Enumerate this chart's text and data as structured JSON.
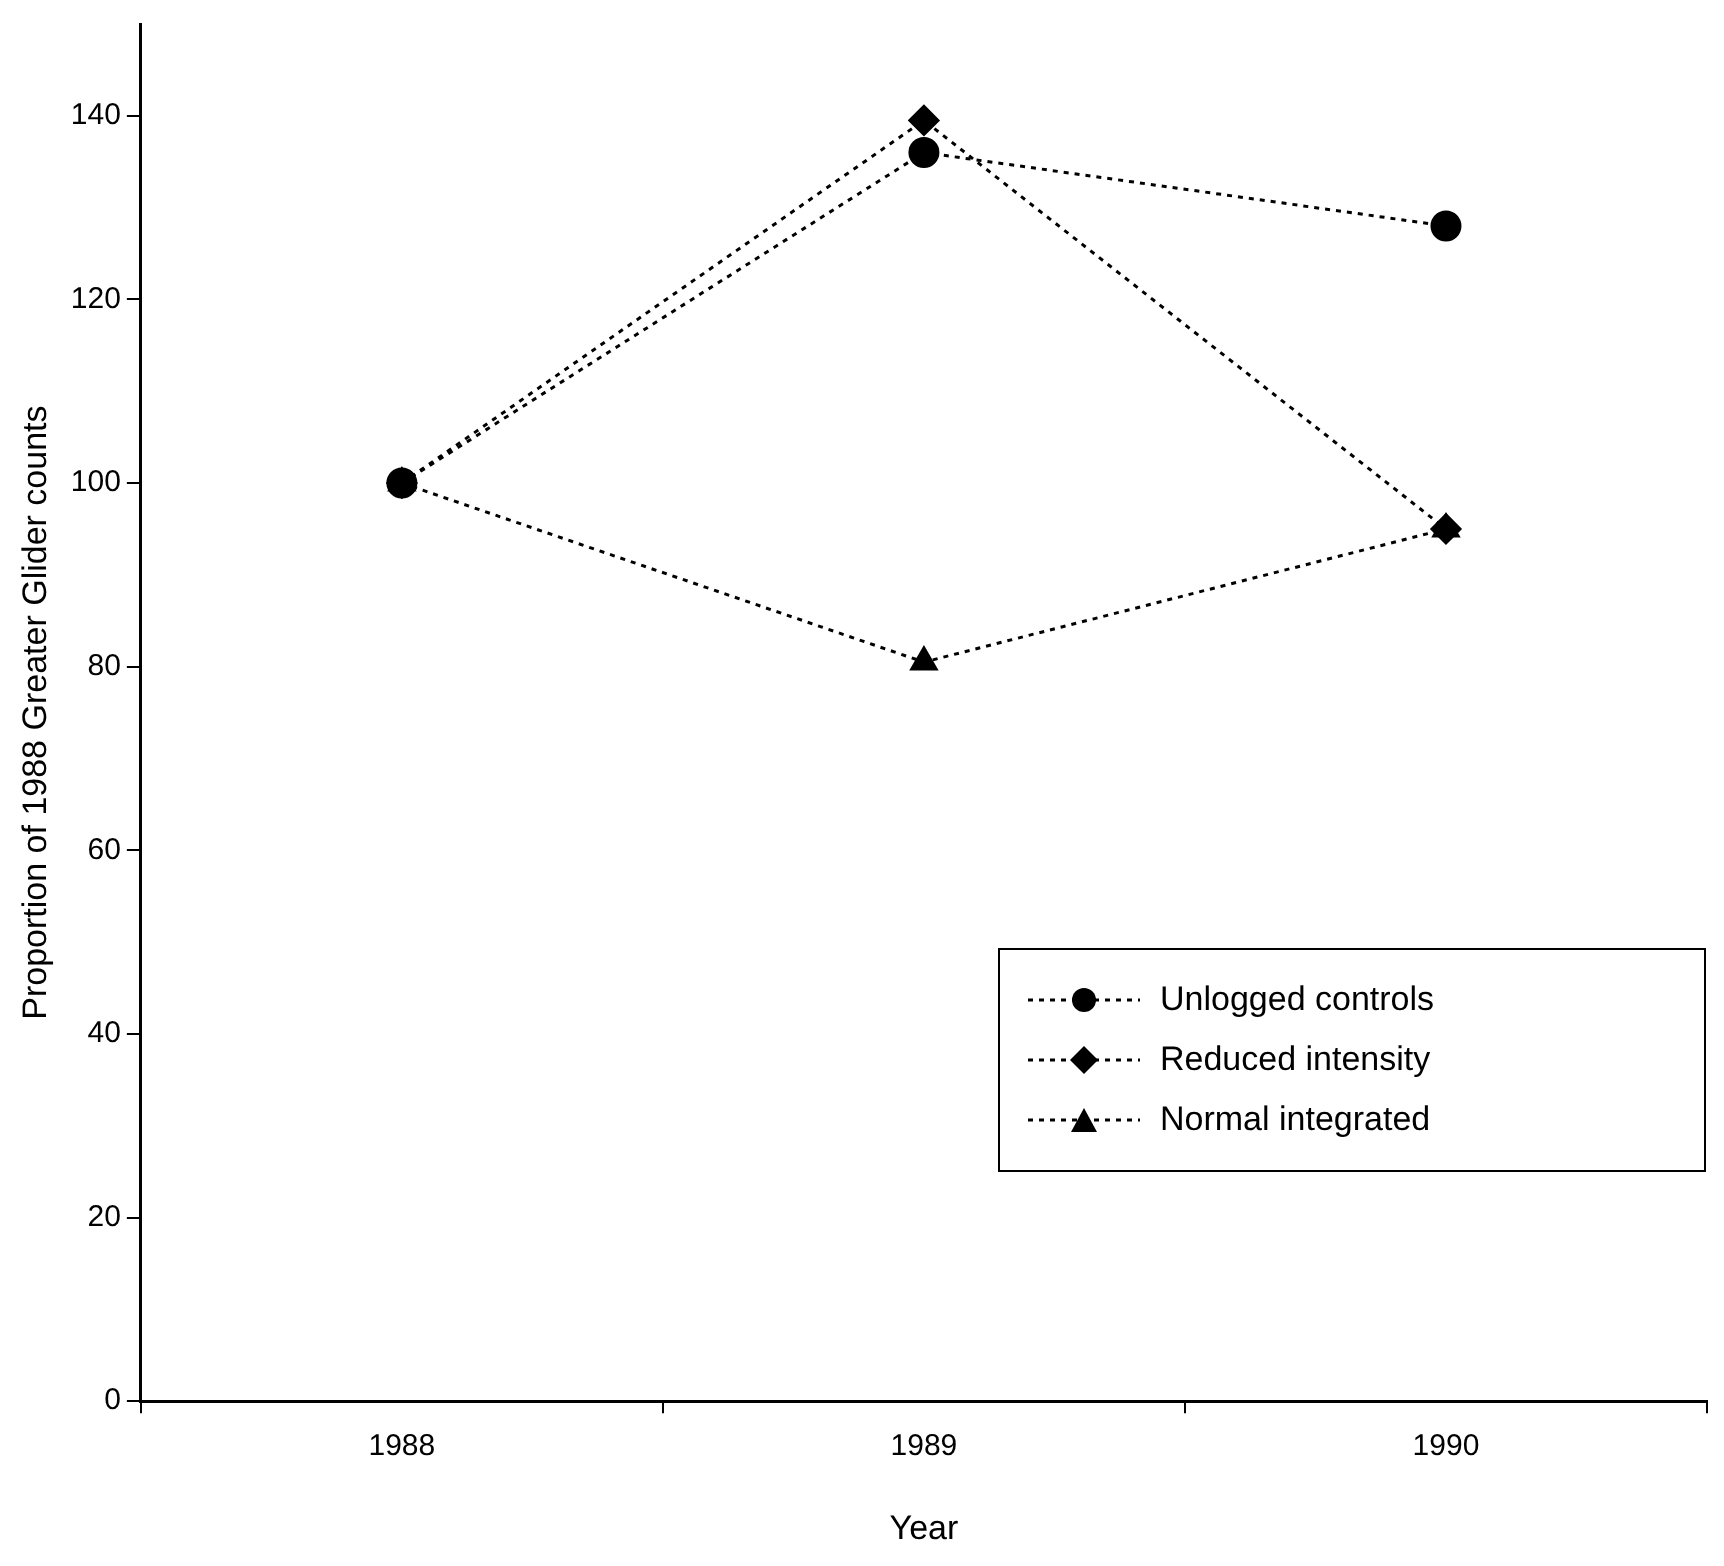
{
  "chart_data": {
    "type": "line",
    "xlabel": "Year",
    "ylabel": "Proportion of 1988 Greater Glider counts",
    "categories": [
      "1988",
      "1989",
      "1990"
    ],
    "series": [
      {
        "name": "Unlogged controls",
        "color": "#000000",
        "marker": "circle",
        "values": [
          100,
          136,
          128
        ]
      },
      {
        "name": "Reduced intensity",
        "color": "#000000",
        "marker": "diamond",
        "values": [
          100,
          139.5,
          95
        ]
      },
      {
        "name": "Normal integrated",
        "color": "#000000",
        "marker": "triangle",
        "values": [
          100,
          80.5,
          95
        ]
      }
    ],
    "ylim": [
      0,
      150
    ],
    "yticks": [
      0,
      20,
      40,
      60,
      80,
      100,
      120,
      140
    ],
    "grid": false,
    "legend": "bottom right",
    "line_style": "dotted"
  }
}
